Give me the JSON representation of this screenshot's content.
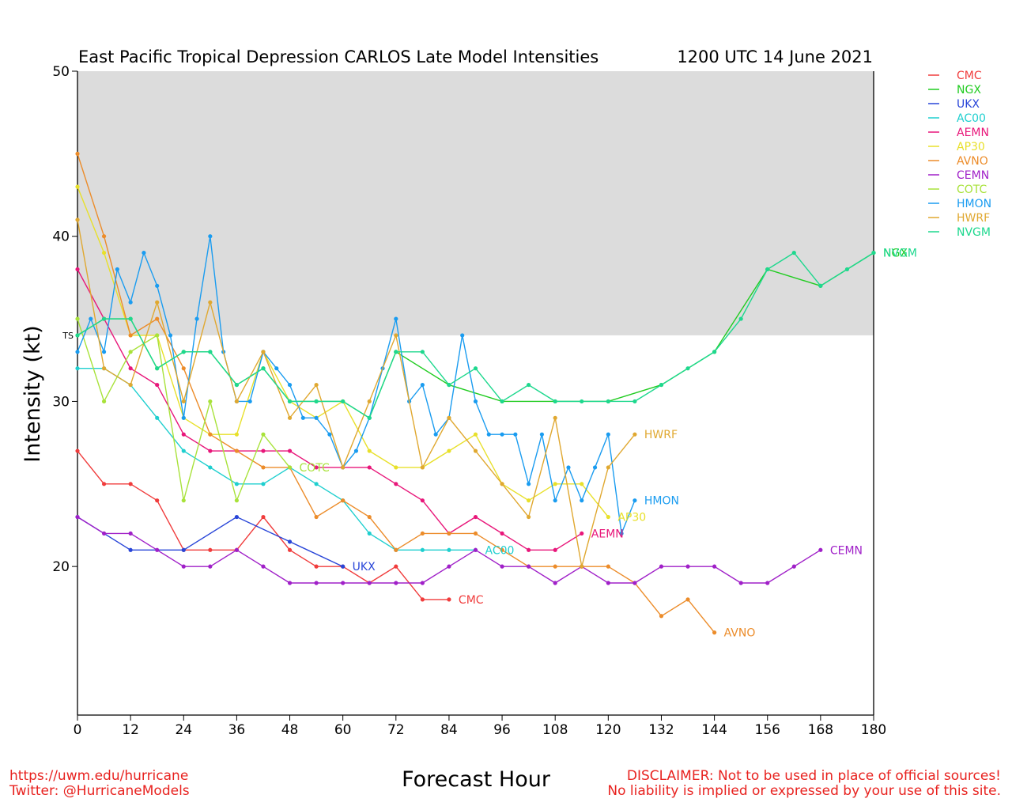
{
  "chart_data": {
    "type": "line",
    "title": "East Pacific Tropical Depression CARLOS Late Model Intensities",
    "subtitle": "1200 UTC 14 June 2021",
    "xlabel": "Forecast Hour",
    "ylabel": "Intensity (kt)",
    "xlim": [
      0,
      180
    ],
    "ylim": [
      11,
      50
    ],
    "x_ticks": [
      0,
      12,
      24,
      36,
      48,
      60,
      72,
      84,
      96,
      108,
      120,
      132,
      144,
      156,
      168,
      180
    ],
    "y_ticks": [
      20,
      30,
      40,
      50
    ],
    "ts_threshold": 34,
    "ts_label": "TS",
    "shaded_region": [
      34,
      50
    ],
    "shaded_color": "#dcdcdc",
    "legend_position": "right",
    "series": [
      {
        "name": "CMC",
        "color": "#f03c3c",
        "x": [
          0,
          6,
          12,
          18,
          24,
          30,
          36,
          42,
          48,
          54,
          60,
          66,
          72,
          78,
          84
        ],
        "y": [
          27,
          25,
          25,
          24,
          21,
          21,
          21,
          23,
          21,
          20,
          20,
          19,
          20,
          18,
          18
        ],
        "end_label": "CMC"
      },
      {
        "name": "NGX",
        "color": "#21cc21",
        "x": [
          0,
          6,
          12,
          18,
          24,
          30,
          36,
          42,
          48,
          54,
          60,
          66,
          72,
          84,
          96,
          108,
          120,
          132,
          144,
          156,
          168,
          180
        ],
        "y": [
          34,
          35,
          35,
          32,
          33,
          33,
          31,
          32,
          30,
          30,
          30,
          29,
          33,
          31,
          30,
          30,
          30,
          31,
          33,
          38,
          37,
          39
        ],
        "end_label": "NGX"
      },
      {
        "name": "UKX",
        "color": "#2845d8",
        "x": [
          0,
          12,
          24,
          36,
          48,
          60
        ],
        "y": [
          23,
          21,
          21,
          23,
          21.5,
          20
        ],
        "end_label": "UKX"
      },
      {
        "name": "AC00",
        "color": "#1fcfcf",
        "x": [
          0,
          6,
          12,
          18,
          24,
          30,
          36,
          42,
          48,
          54,
          60,
          66,
          72,
          78,
          84,
          90
        ],
        "y": [
          32,
          32,
          31,
          29,
          27,
          26,
          25,
          25,
          26,
          25,
          24,
          22,
          21,
          21,
          21,
          21
        ],
        "end_label": "AC00"
      },
      {
        "name": "AEMN",
        "color": "#e8177a",
        "x": [
          0,
          6,
          12,
          18,
          24,
          30,
          36,
          42,
          48,
          54,
          60,
          66,
          72,
          78,
          84,
          90,
          96,
          102,
          108,
          114
        ],
        "y": [
          38,
          35,
          32,
          31,
          28,
          27,
          27,
          27,
          27,
          26,
          26,
          26,
          25,
          24,
          22,
          23,
          22,
          21,
          21,
          22
        ],
        "end_label": "AEMN"
      },
      {
        "name": "AP30",
        "color": "#e8e02a",
        "x": [
          0,
          6,
          12,
          18,
          24,
          30,
          36,
          42,
          48,
          54,
          60,
          66,
          72,
          78,
          84,
          90,
          96,
          102,
          108,
          114,
          120
        ],
        "y": [
          43,
          39,
          34,
          34,
          29,
          28,
          28,
          33,
          30,
          29,
          30,
          27,
          26,
          26,
          27,
          28,
          25,
          24,
          25,
          25,
          23
        ],
        "end_label": "AP30"
      },
      {
        "name": "AVNO",
        "color": "#ec8c2a",
        "x": [
          0,
          6,
          12,
          18,
          24,
          30,
          36,
          42,
          48,
          54,
          60,
          66,
          72,
          78,
          84,
          90,
          96,
          102,
          108,
          114,
          120,
          126,
          132,
          138,
          144
        ],
        "y": [
          45,
          40,
          34,
          35,
          32,
          28,
          27,
          26,
          26,
          23,
          24,
          23,
          21,
          22,
          22,
          22,
          21,
          20,
          20,
          20,
          20,
          19,
          17,
          18,
          16
        ],
        "end_label": "AVNO"
      },
      {
        "name": "CEMN",
        "color": "#a020c8",
        "x": [
          0,
          6,
          12,
          18,
          24,
          30,
          36,
          42,
          48,
          54,
          60,
          66,
          72,
          78,
          84,
          90,
          96,
          102,
          108,
          114,
          120,
          126,
          132,
          138,
          144,
          150,
          156,
          162,
          168
        ],
        "y": [
          23,
          22,
          22,
          21,
          20,
          20,
          21,
          20,
          19,
          19,
          19,
          19,
          19,
          19,
          20,
          21,
          20,
          20,
          19,
          20,
          19,
          19,
          20,
          20,
          20,
          19,
          19,
          20,
          21
        ],
        "end_label": "CEMN"
      },
      {
        "name": "COTC",
        "color": "#a8e23a",
        "x": [
          0,
          6,
          12,
          18,
          24,
          30,
          36,
          42,
          48
        ],
        "y": [
          35,
          30,
          33,
          34,
          24,
          30,
          24,
          28,
          26
        ],
        "end_label": "COTC"
      },
      {
        "name": "HMON",
        "color": "#1a9cf0",
        "x": [
          0,
          3,
          6,
          9,
          12,
          15,
          18,
          21,
          24,
          27,
          30,
          33,
          36,
          39,
          42,
          45,
          48,
          51,
          54,
          57,
          60,
          63,
          66,
          69,
          72,
          75,
          78,
          81,
          84,
          87,
          90,
          93,
          96,
          99,
          102,
          105,
          108,
          111,
          114,
          117,
          120,
          123,
          126
        ],
        "y": [
          33,
          35,
          33,
          38,
          36,
          39,
          37,
          34,
          29,
          35,
          40,
          33,
          30,
          30,
          33,
          32,
          31,
          29,
          29,
          28,
          26,
          27,
          29,
          32,
          35,
          30,
          31,
          28,
          29,
          34,
          30,
          28,
          28,
          28,
          25,
          28,
          24,
          26,
          24,
          26,
          28,
          22,
          24
        ],
        "end_label": "HMON"
      },
      {
        "name": "HWRF",
        "color": "#e0a830",
        "x": [
          0,
          6,
          12,
          18,
          24,
          30,
          36,
          42,
          48,
          54,
          60,
          66,
          72,
          78,
          84,
          90,
          96,
          102,
          108,
          114,
          120,
          126
        ],
        "y": [
          41,
          32,
          31,
          36,
          30,
          36,
          30,
          33,
          29,
          31,
          26,
          30,
          34,
          26,
          29,
          27,
          25,
          23,
          29,
          20,
          26,
          28
        ],
        "end_label": "HWRF"
      },
      {
        "name": "NVGM",
        "color": "#1ed88e",
        "x": [
          0,
          6,
          12,
          18,
          24,
          30,
          36,
          42,
          48,
          54,
          60,
          66,
          72,
          78,
          84,
          90,
          96,
          102,
          108,
          114,
          120,
          126,
          132,
          138,
          144,
          150,
          156,
          162,
          168,
          174,
          180
        ],
        "y": [
          34,
          35,
          35,
          32,
          33,
          33,
          31,
          32,
          30,
          30,
          30,
          29,
          33,
          33,
          31,
          32,
          30,
          31,
          30,
          30,
          30,
          30,
          31,
          32,
          33,
          35,
          38,
          39,
          37,
          38,
          39
        ],
        "end_label": "NVGM"
      }
    ]
  },
  "footer": {
    "url": "https://uwm.edu/hurricane",
    "twitter": "Twitter: @HurricaneModels",
    "disclaimer_line1": "DISCLAIMER: Not to be used in place of official sources!",
    "disclaimer_line2": "No liability is implied or expressed by your use of this site."
  }
}
